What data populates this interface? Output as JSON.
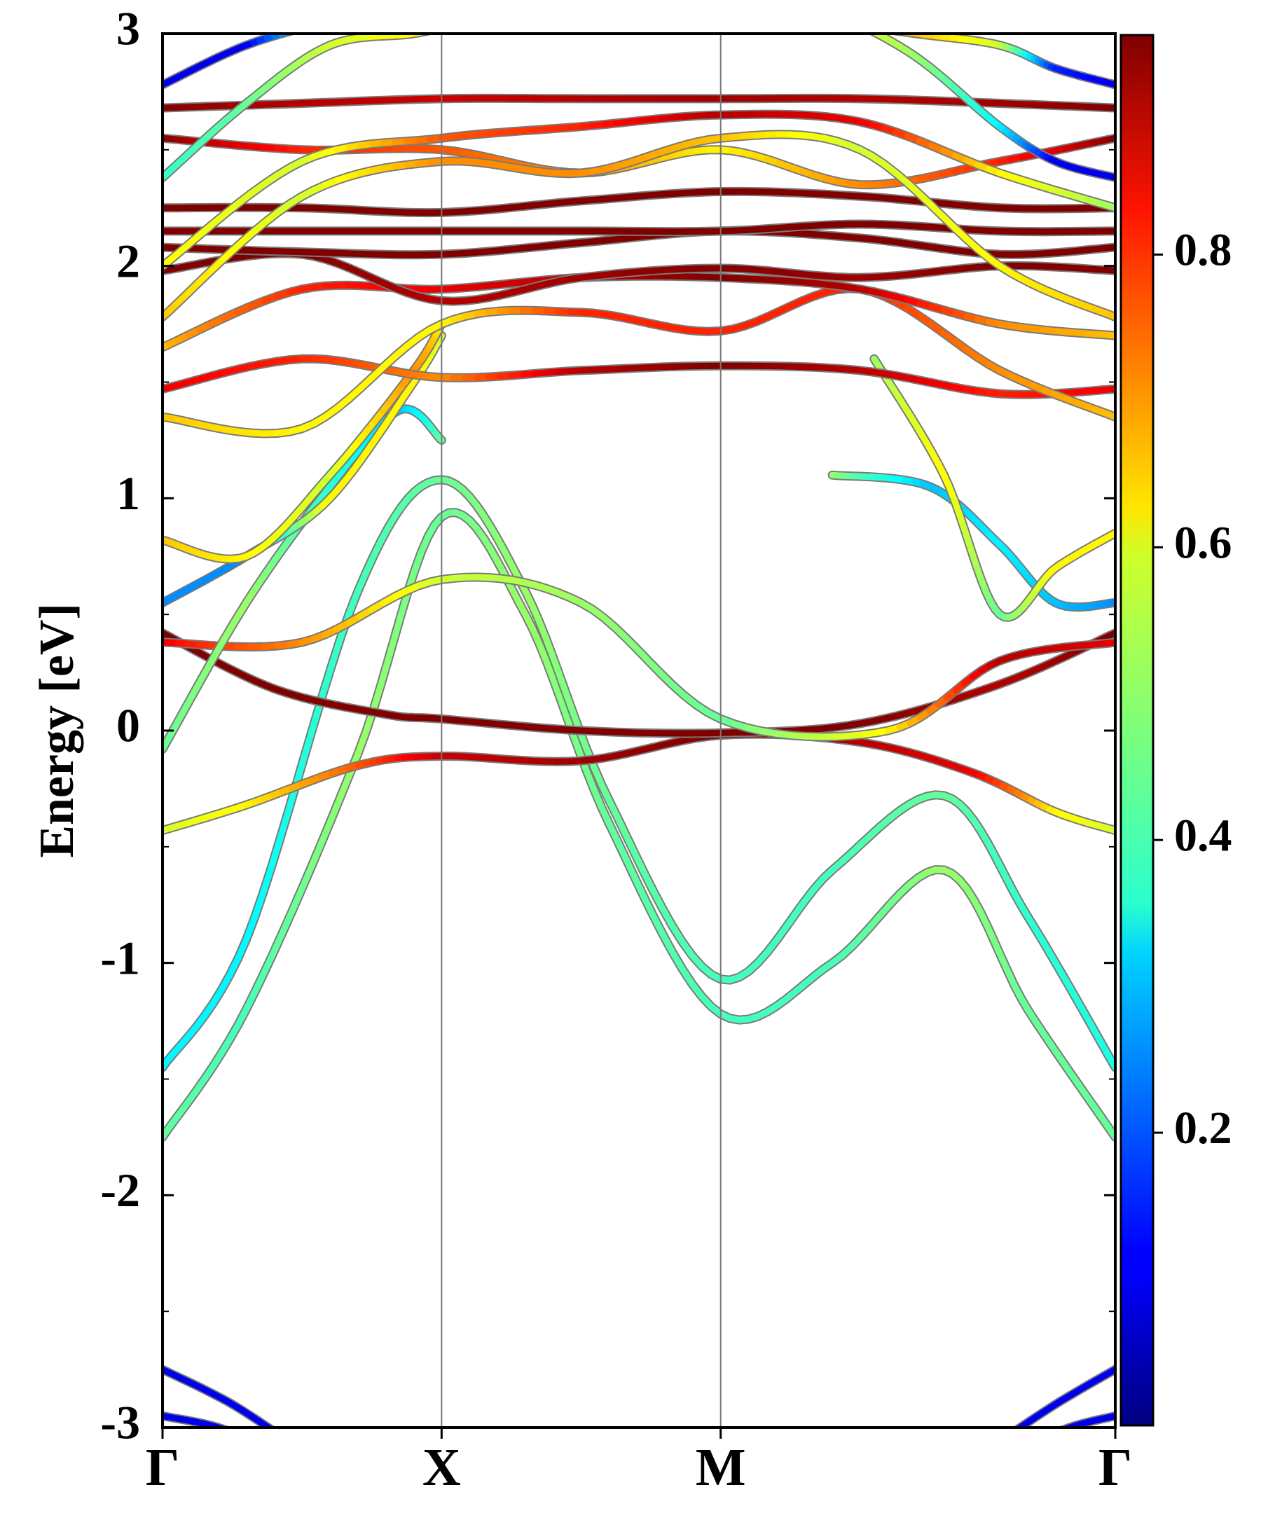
{
  "chart_data": {
    "type": "line",
    "title": "",
    "xlabel": "",
    "ylabel": "Energy [eV]",
    "ylim": [
      -3,
      3
    ],
    "yticks": [
      "-3",
      "-2",
      "-1",
      "0",
      "1",
      "2",
      "3"
    ],
    "kpath": [
      "Γ",
      "X",
      "M",
      "Γ"
    ],
    "kpath_positions": [
      0,
      1,
      2,
      3.414
    ],
    "grid": false,
    "colormap": "jet",
    "colorbar": {
      "range": [
        0,
        0.95
      ],
      "ticks": [
        "0.2",
        "0.4",
        "0.6",
        "0.8"
      ]
    },
    "series": [
      {
        "k": [
          0,
          0.3,
          0.7,
          1,
          1.3,
          1.6,
          2,
          2.4,
          2.8,
          3.1,
          3.414
        ],
        "energy": [
          -1.75,
          -1.2,
          -0.1,
          0.92,
          0.5,
          -0.4,
          -1.22,
          -1.0,
          -0.6,
          -1.2,
          -1.75
        ],
        "weight": [
          0.45,
          0.42,
          0.5,
          0.45,
          0.5,
          0.45,
          0.42,
          0.42,
          0.5,
          0.45,
          0.45
        ]
      },
      {
        "k": [
          0,
          0.3,
          0.7,
          1,
          1.3,
          1.6,
          2,
          2.4,
          2.8,
          3.1,
          3.414
        ],
        "energy": [
          -1.45,
          -0.9,
          0.6,
          1.08,
          0.6,
          -0.3,
          -1.07,
          -0.6,
          -0.28,
          -0.8,
          -1.45
        ],
        "weight": [
          0.35,
          0.35,
          0.42,
          0.45,
          0.5,
          0.45,
          0.42,
          0.42,
          0.45,
          0.4,
          0.38
        ]
      },
      {
        "k": [
          0,
          0.3,
          0.7,
          1,
          1.5,
          2,
          2.5,
          2.9,
          3.2,
          3.414
        ],
        "energy": [
          -0.43,
          -0.32,
          -0.15,
          -0.11,
          -0.13,
          -0.02,
          -0.05,
          -0.18,
          -0.35,
          -0.43
        ],
        "weight": [
          0.55,
          0.6,
          0.75,
          0.88,
          0.92,
          0.95,
          0.9,
          0.85,
          0.6,
          0.55
        ]
      },
      {
        "k": [
          0,
          0.4,
          0.8,
          1,
          1.5,
          2,
          2.5,
          3,
          3.414
        ],
        "energy": [
          0.42,
          0.18,
          0.07,
          0.05,
          0.0,
          -0.01,
          0.03,
          0.2,
          0.42
        ],
        "weight": [
          0.95,
          0.95,
          0.95,
          0.95,
          0.95,
          0.95,
          0.95,
          0.9,
          0.95
        ]
      },
      {
        "k": [
          0,
          0.5,
          1,
          1.5,
          2,
          2.6,
          3,
          3.414
        ],
        "energy": [
          0.38,
          0.38,
          0.65,
          0.55,
          0.05,
          0.0,
          0.3,
          0.38
        ],
        "weight": [
          0.85,
          0.7,
          0.55,
          0.5,
          0.45,
          0.6,
          0.9,
          0.85
        ]
      },
      {
        "k": [
          0,
          0.3,
          0.6,
          0.85,
          1.0
        ],
        "energy": [
          -0.08,
          0.55,
          1.05,
          1.38,
          1.25
        ],
        "weight": [
          0.45,
          0.5,
          0.4,
          0.3,
          0.45
        ]
      },
      {
        "k": [
          0,
          0.3,
          0.6,
          0.9,
          1.0
        ],
        "energy": [
          0.55,
          0.75,
          1.0,
          1.5,
          1.7
        ],
        "weight": [
          0.25,
          0.25,
          0.6,
          0.6,
          0.55
        ]
      },
      {
        "k": [
          0,
          0.3,
          0.6,
          0.9,
          1.0
        ],
        "energy": [
          0.82,
          0.75,
          1.1,
          1.55,
          1.75
        ],
        "weight": [
          0.65,
          0.6,
          0.55,
          0.7,
          0.6
        ]
      },
      {
        "k": [
          2.4,
          2.75,
          3.0,
          3.2,
          3.414
        ],
        "energy": [
          1.1,
          1.05,
          0.8,
          0.55,
          0.55
        ],
        "weight": [
          0.5,
          0.3,
          0.35,
          0.3,
          0.25
        ]
      },
      {
        "k": [
          2.55,
          2.8,
          3.0,
          3.2,
          3.414
        ],
        "energy": [
          1.6,
          1.1,
          0.5,
          0.7,
          0.85
        ],
        "weight": [
          0.5,
          0.6,
          0.45,
          0.6,
          0.6
        ]
      },
      {
        "k": [
          0,
          0.5,
          1,
          1.5,
          2,
          2.5,
          3,
          3.414
        ],
        "energy": [
          1.47,
          1.6,
          1.52,
          1.55,
          1.57,
          1.55,
          1.45,
          1.47
        ],
        "weight": [
          0.85,
          0.8,
          0.7,
          0.9,
          0.95,
          0.9,
          0.8,
          0.85
        ]
      },
      {
        "k": [
          0,
          0.5,
          1,
          1.5,
          2,
          2.5,
          3,
          3.414
        ],
        "energy": [
          1.35,
          1.3,
          1.75,
          1.8,
          1.72,
          1.9,
          1.55,
          1.35
        ],
        "weight": [
          0.65,
          0.6,
          0.6,
          0.8,
          0.8,
          0.8,
          0.7,
          0.65
        ]
      },
      {
        "k": [
          0,
          0.5,
          1,
          1.5,
          2,
          2.5,
          3,
          3.414
        ],
        "energy": [
          1.65,
          1.9,
          1.9,
          1.95,
          1.95,
          1.9,
          1.75,
          1.7
        ],
        "weight": [
          0.65,
          0.8,
          0.85,
          0.9,
          0.95,
          0.9,
          0.7,
          0.65
        ]
      },
      {
        "k": [
          0,
          0.5,
          1,
          1.5,
          2,
          2.5,
          3,
          3.414
        ],
        "energy": [
          1.98,
          2.05,
          1.85,
          1.95,
          1.99,
          1.95,
          2.0,
          1.98
        ],
        "weight": [
          0.95,
          0.95,
          0.9,
          0.92,
          0.95,
          0.92,
          0.95,
          0.95
        ]
      },
      {
        "k": [
          0,
          0.5,
          1,
          1.5,
          2,
          2.5,
          3,
          3.414
        ],
        "energy": [
          2.08,
          2.06,
          2.05,
          2.1,
          2.15,
          2.12,
          2.05,
          2.08
        ],
        "weight": [
          0.95,
          0.95,
          0.95,
          0.95,
          0.95,
          0.95,
          0.95,
          0.95
        ]
      },
      {
        "k": [
          0,
          0.5,
          1,
          1.5,
          2,
          2.5,
          3,
          3.414
        ],
        "energy": [
          2.15,
          2.15,
          2.15,
          2.15,
          2.15,
          2.18,
          2.15,
          2.15
        ],
        "weight": [
          0.95,
          0.95,
          0.95,
          0.95,
          0.95,
          0.95,
          0.95,
          0.95
        ]
      },
      {
        "k": [
          0,
          0.5,
          1,
          1.5,
          2,
          2.5,
          3,
          3.414
        ],
        "energy": [
          2.25,
          2.25,
          2.23,
          2.28,
          2.32,
          2.3,
          2.25,
          2.25
        ],
        "weight": [
          0.95,
          0.95,
          0.95,
          0.95,
          0.95,
          0.95,
          0.95,
          0.95
        ]
      },
      {
        "k": [
          0,
          0.5,
          1,
          1.5,
          2,
          2.5,
          3,
          3.414
        ],
        "energy": [
          2.55,
          2.5,
          2.5,
          2.4,
          2.5,
          2.35,
          2.45,
          2.55
        ],
        "weight": [
          0.95,
          0.8,
          0.75,
          0.7,
          0.6,
          0.7,
          0.8,
          0.95
        ]
      },
      {
        "k": [
          0,
          0.5,
          1,
          1.5,
          2,
          2.5,
          3,
          3.414
        ],
        "energy": [
          2.68,
          2.7,
          2.72,
          2.72,
          2.72,
          2.72,
          2.7,
          2.68
        ],
        "weight": [
          0.95,
          0.9,
          0.88,
          0.9,
          0.92,
          0.9,
          0.92,
          0.95
        ]
      },
      {
        "k": [
          0,
          0.5,
          1,
          1.5,
          2,
          2.5,
          3,
          3.414
        ],
        "energy": [
          2.0,
          2.45,
          2.55,
          2.6,
          2.65,
          2.62,
          2.4,
          2.25
        ],
        "weight": [
          0.6,
          0.55,
          0.75,
          0.8,
          0.9,
          0.85,
          0.6,
          0.5
        ]
      },
      {
        "k": [
          0,
          0.5,
          1,
          1.5,
          2,
          2.5,
          3,
          3.414
        ],
        "energy": [
          1.78,
          2.3,
          2.45,
          2.4,
          2.55,
          2.5,
          2.0,
          1.78
        ],
        "weight": [
          0.65,
          0.55,
          0.7,
          0.7,
          0.65,
          0.55,
          0.6,
          0.65
        ]
      },
      {
        "k": [
          0,
          0.3,
          0.6,
          0.9,
          1.1
        ],
        "energy": [
          2.38,
          2.7,
          2.95,
          3.0,
          3.05
        ],
        "weight": [
          0.4,
          0.45,
          0.55,
          0.6,
          0.65
        ]
      },
      {
        "k": [
          0,
          0.3,
          0.6,
          0.9,
          1.1
        ],
        "energy": [
          2.78,
          2.95,
          3.05,
          3.1,
          3.1
        ],
        "weight": [
          0.1,
          0.1,
          0.45,
          0.5,
          0.55
        ]
      },
      {
        "k": [
          2.4,
          2.7,
          3.0,
          3.2,
          3.414
        ],
        "energy": [
          3.1,
          2.9,
          2.6,
          2.45,
          2.38
        ],
        "weight": [
          0.6,
          0.5,
          0.35,
          0.1,
          0.1
        ]
      },
      {
        "k": [
          2.4,
          2.7,
          3.0,
          3.2,
          3.414
        ],
        "energy": [
          3.05,
          3.0,
          2.95,
          2.85,
          2.78
        ],
        "weight": [
          0.6,
          0.65,
          0.55,
          0.15,
          0.1
        ]
      },
      {
        "k": [
          0,
          0.25,
          0.5
        ],
        "energy": [
          -2.75,
          -2.9,
          -3.1
        ],
        "weight": [
          0.1,
          0.1,
          0.1
        ]
      },
      {
        "k": [
          0,
          0.2,
          0.4
        ],
        "energy": [
          -2.95,
          -3.0,
          -3.1
        ],
        "weight": [
          0.1,
          0.1,
          0.1
        ]
      },
      {
        "k": [
          3.414,
          3.2,
          2.95
        ],
        "energy": [
          -2.75,
          -2.9,
          -3.1
        ],
        "weight": [
          0.1,
          0.1,
          0.1
        ]
      },
      {
        "k": [
          3.414,
          3.25,
          3.05
        ],
        "energy": [
          -2.95,
          -3.0,
          -3.1
        ],
        "weight": [
          0.1,
          0.1,
          0.1
        ]
      }
    ]
  }
}
